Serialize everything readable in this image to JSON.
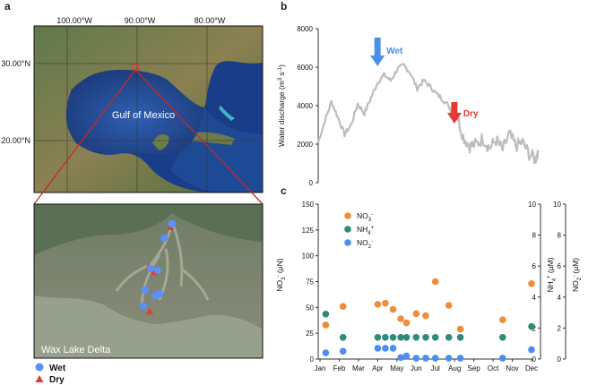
{
  "panels": {
    "a": "a",
    "b": "b",
    "c": "c"
  },
  "map_top": {
    "lon_ticks": [
      "100.00°W",
      "90.00°W",
      "80.00°W"
    ],
    "lat_ticks": [
      "30.00°N",
      "20.00°N"
    ],
    "gulf_label": "Gulf of Mexico"
  },
  "map_bottom": {
    "title": "Wax Lake Delta",
    "legend": {
      "wet": "Wet",
      "dry": "Dry"
    }
  },
  "colors": {
    "wet": "#5b8ff9",
    "dry": "#e53935",
    "discharge": "#bdbdbd",
    "arrow_wet": "#4a90e2",
    "arrow_dry": "#e53935",
    "no3": "#f08c3a",
    "nh4": "#2e8b7a",
    "no2": "#4b8df0"
  },
  "chart_data": [
    {
      "type": "line",
      "ylabel": "Water discharge (m3 s-1)",
      "ylim": [
        0,
        8000
      ],
      "yticks": [
        "0",
        "2000",
        "4000",
        "6000",
        "8000"
      ],
      "series": [
        {
          "name": "Water discharge",
          "x": [
            0,
            3,
            6,
            9,
            12,
            15,
            18,
            21,
            24,
            27,
            30,
            33,
            36,
            39,
            42,
            45,
            48,
            51,
            54,
            57,
            60,
            63,
            66,
            69,
            72,
            75,
            78,
            81,
            84,
            87,
            90,
            93,
            96,
            99,
            100
          ],
          "values": [
            2100,
            3200,
            4200,
            3400,
            2500,
            3000,
            4100,
            3600,
            4400,
            5200,
            5600,
            5300,
            5900,
            6100,
            5700,
            4900,
            5300,
            5000,
            4600,
            4300,
            3900,
            3600,
            2400,
            1900,
            2000,
            2300,
            1800,
            2200,
            1700,
            2500,
            1900,
            2100,
            1500,
            1200,
            1700
          ]
        }
      ],
      "annotations": [
        {
          "label": "Wet",
          "x": 27
        },
        {
          "label": "Dry",
          "x": 62
        }
      ]
    },
    {
      "type": "scatter",
      "months": [
        "Jan",
        "Feb",
        "Mar",
        "Apr",
        "May",
        "Jun",
        "Jul",
        "Aug",
        "Sep",
        "Oct",
        "Nov",
        "Dec"
      ],
      "left_axis": {
        "label": "NO3- (μN)",
        "ylim": [
          0,
          150
        ],
        "ticks": [
          "0",
          "25",
          "50",
          "75",
          "100",
          "125",
          "150"
        ]
      },
      "right_axis_1": {
        "label": "NH4+ (μM)",
        "ylim": [
          0,
          10
        ],
        "ticks": [
          "0",
          "2",
          "4",
          "6",
          "8",
          "10"
        ]
      },
      "right_axis_2": {
        "label": "NO2- (μM)",
        "ylim": [
          0,
          10
        ],
        "ticks": [
          "0",
          "2",
          "4",
          "6",
          "8",
          "10"
        ]
      },
      "legend": [
        "NO3-",
        "NH4+",
        "NO2-"
      ],
      "x": [
        0.3,
        1.2,
        3.0,
        3.4,
        3.8,
        4.2,
        4.5,
        5.0,
        5.5,
        6.0,
        6.7,
        7.3,
        9.5,
        11.0
      ],
      "series": [
        {
          "name": "NO3-",
          "values": [
            33,
            51,
            53,
            54,
            48,
            39,
            35,
            44,
            42,
            75,
            52,
            29,
            38,
            73
          ]
        },
        {
          "name": "NH4+",
          "values": [
            2.9,
            1.4,
            1.4,
            1.4,
            1.4,
            1.4,
            1.4,
            1.4,
            1.4,
            1.4,
            1.4,
            1.4,
            1.4,
            2.1
          ]
        },
        {
          "name": "NO2-",
          "values": [
            0.4,
            0.5,
            0.7,
            0.7,
            0.7,
            0.1,
            0.2,
            0.05,
            0.05,
            0.05,
            0.05,
            0.05,
            0.05,
            0.6
          ]
        }
      ]
    }
  ]
}
